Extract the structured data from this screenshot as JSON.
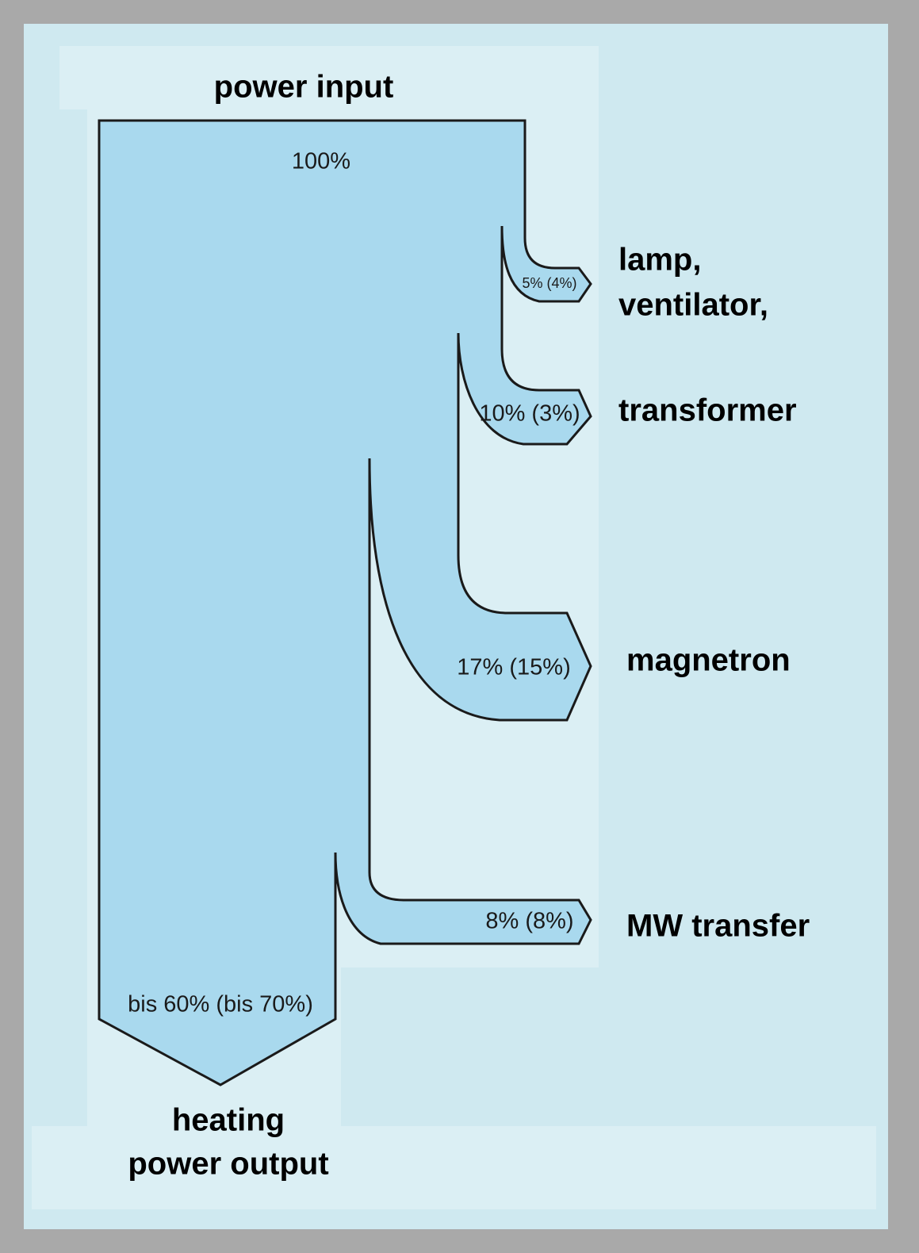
{
  "input": {
    "title": "power input",
    "share": "100%"
  },
  "losses": [
    {
      "share": "5% (4%)"
    },
    {
      "share": "10% (3%)"
    },
    {
      "share": "17% (15%)"
    },
    {
      "share": "8% (8%)"
    }
  ],
  "side_labels": [
    "lamp,",
    "ventilator,",
    "transformer",
    "magnetron",
    "MW transfer"
  ],
  "output": {
    "share": "bis 60% (bis 70%)",
    "title_lines": [
      "heating",
      "power output"
    ]
  }
}
